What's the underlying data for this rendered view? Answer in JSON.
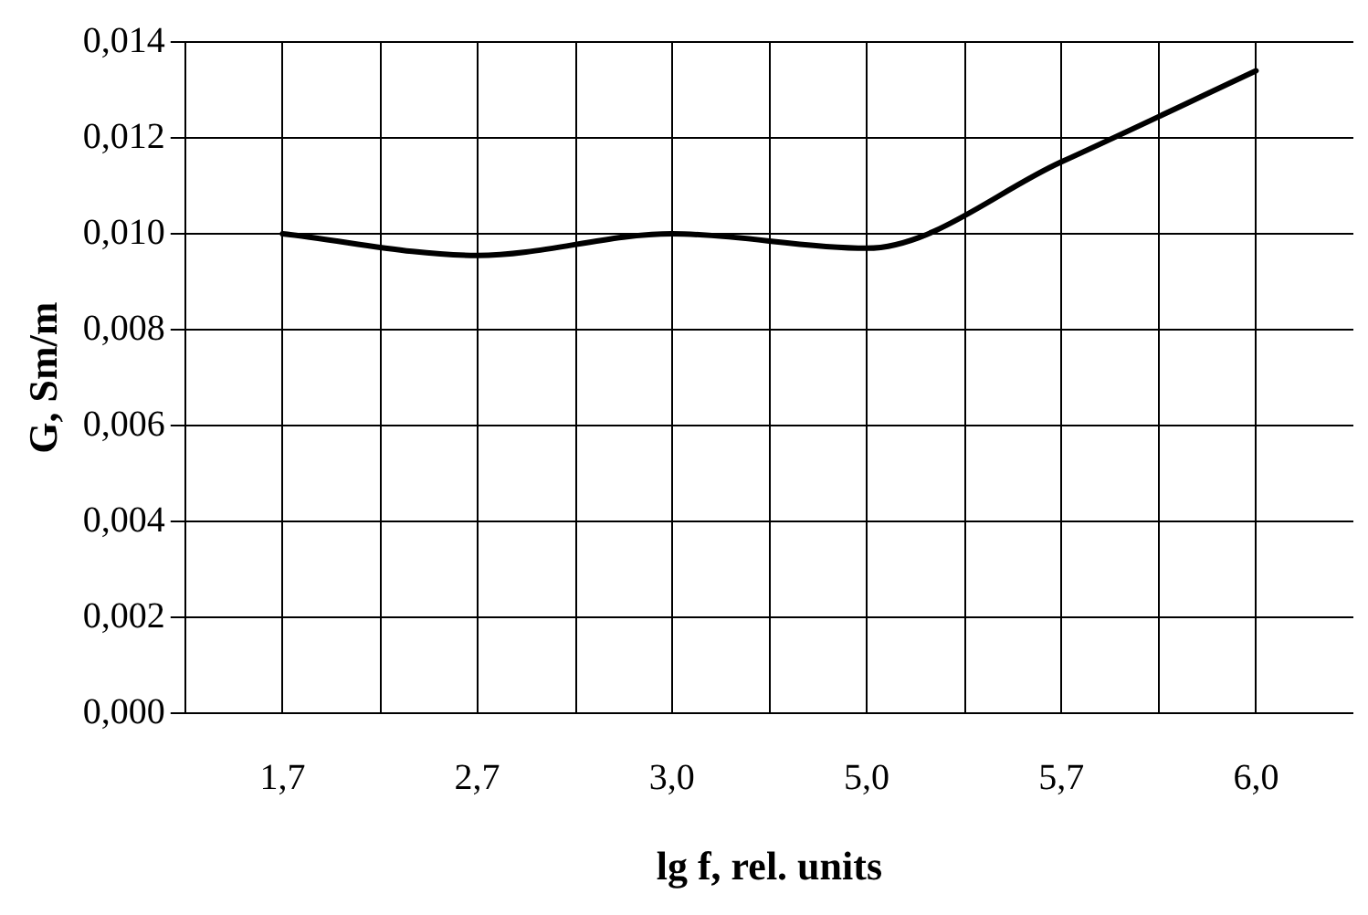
{
  "chart_data": {
    "type": "line",
    "xlabel": "lg f, rel. units",
    "ylabel": "G, Sm/m",
    "categories": [
      "1,7",
      "2,7",
      "3,0",
      "5,0",
      "5,7",
      "6,0"
    ],
    "series": [
      {
        "color": "#000000",
        "values": [
          0.01,
          0.00955,
          0.01,
          0.0097,
          0.0115,
          0.0134
        ]
      }
    ],
    "ylim": [
      0,
      0.014
    ],
    "yticks": [
      {
        "value": 0,
        "label": "0,000"
      },
      {
        "value": 0.002,
        "label": "0,002"
      },
      {
        "value": 0.004,
        "label": "0,004"
      },
      {
        "value": 0.006,
        "label": "0,006"
      },
      {
        "value": 0.008,
        "label": "0,008"
      },
      {
        "value": 0.01,
        "label": "0,010"
      },
      {
        "value": 0.012,
        "label": "0,012"
      },
      {
        "value": 0.014,
        "label": "0,014"
      }
    ],
    "grid": true,
    "legend": false,
    "marker": "none",
    "line_style": "solid"
  }
}
